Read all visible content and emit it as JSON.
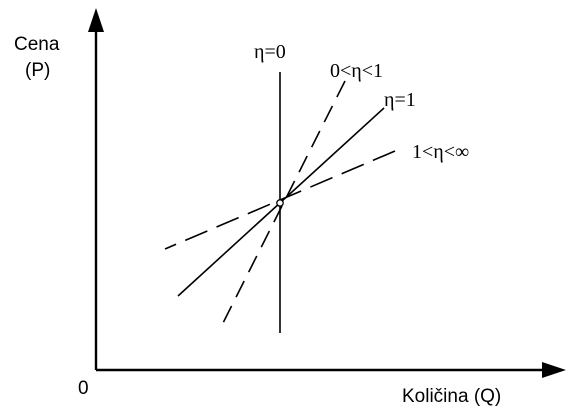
{
  "axes": {
    "y_label_line1": "Cena",
    "y_label_line2": "(P)",
    "x_label": "Količina (Q)",
    "origin_label": "0"
  },
  "lines": [
    {
      "id": "eta0",
      "label": "η=0",
      "style": "solid"
    },
    {
      "id": "eta01",
      "label": "0<η<1",
      "style": "dashed"
    },
    {
      "id": "eta1",
      "label": "η=1",
      "style": "solid"
    },
    {
      "id": "eta1inf",
      "label": "1<η<∞",
      "style": "dashed"
    }
  ]
}
